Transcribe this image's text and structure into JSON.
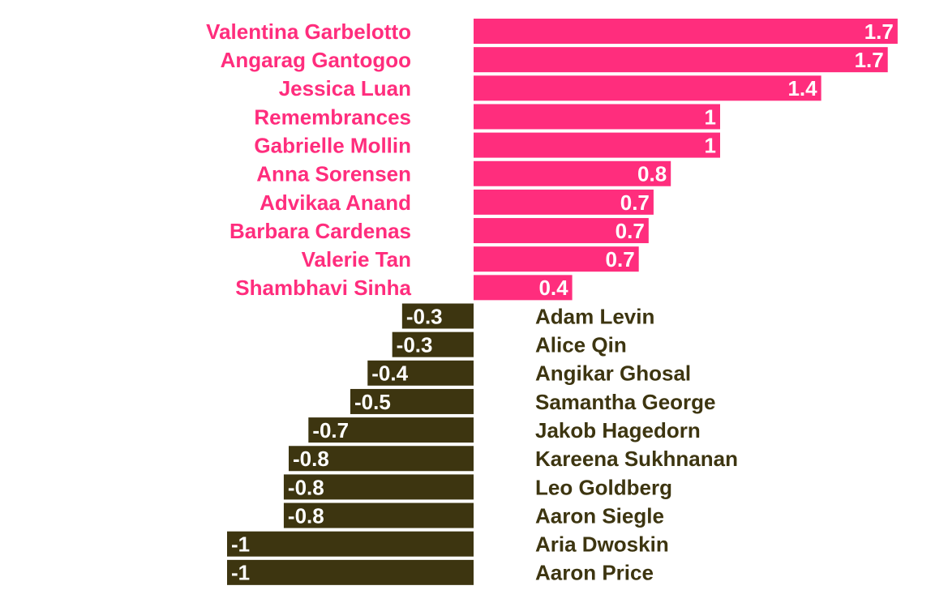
{
  "chart_data": {
    "type": "bar",
    "orientation": "horizontal",
    "title": "",
    "xlabel": "",
    "ylabel": "",
    "grid": false,
    "legend": "none",
    "colors": {
      "positive": "#ff2d7d",
      "negative": "#3d3510",
      "value_label": "#ffffff"
    },
    "categories": [
      "Valentina Garbelotto",
      "Angarag Gantogoo",
      "Jessica Luan",
      "Remembrances",
      "Gabrielle Mollin",
      "Anna Sorensen",
      "Advikaa Anand",
      "Barbara Cardenas",
      "Valerie Tan",
      "Shambhavi Sinha",
      "Adam Levin",
      "Alice Qin",
      "Angikar Ghosal",
      "Samantha George",
      "Jakob Hagedorn",
      "Kareena Sukhnanan",
      "Leo Goldberg",
      "Aaron Siegle",
      "Aria Dwoskin",
      "Aaron Price"
    ],
    "values": [
      1.72,
      1.68,
      1.41,
      1.0,
      1.0,
      0.8,
      0.73,
      0.71,
      0.67,
      0.4,
      -0.29,
      -0.33,
      -0.43,
      -0.5,
      -0.67,
      -0.75,
      -0.77,
      -0.77,
      -1.0,
      -1.0
    ],
    "value_labels": [
      "1.7",
      "1.7",
      "1.4",
      "1",
      "1",
      "0.8",
      "0.7",
      "0.7",
      "0.7",
      "0.4",
      "-0.3",
      "-0.3",
      "-0.4",
      "-0.5",
      "-0.7",
      "-0.8",
      "-0.8",
      "-0.8",
      "-1",
      "-1"
    ]
  }
}
